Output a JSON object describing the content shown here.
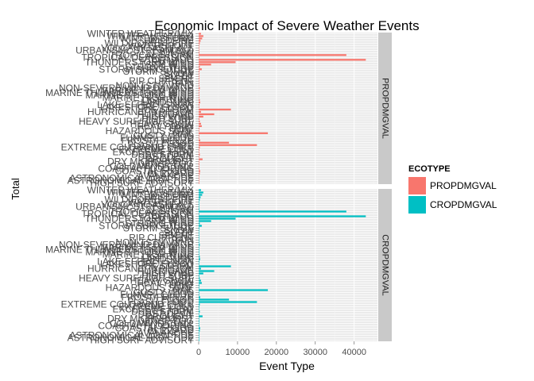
{
  "chart_data": {
    "type": "bar",
    "orientation": "horizontal",
    "title": "Economic Impact of Severe Weather Events",
    "xlabel": "Event Type",
    "ylabel": "Total",
    "xlim": [
      0,
      46000
    ],
    "x_ticks": [
      0,
      10000,
      20000,
      30000,
      40000
    ],
    "x_tick_labels": [
      "0",
      "10000",
      "20000",
      "30000",
      "40000"
    ],
    "grid": true,
    "legend_position": "right",
    "legend": {
      "title": "ECOTYPE",
      "items": [
        {
          "label": "PROPDMGVAL",
          "color": "#F8766D"
        },
        {
          "label": "CROPDMGVAL",
          "color": "#00BFC4"
        }
      ]
    },
    "facets": [
      {
        "label": "PROPDMGVAL",
        "color": "#F8766D"
      },
      {
        "label": "CROPDMGVAL",
        "color": "#00BFC4"
      }
    ],
    "categories": [
      "WINTER WEATHER/MIX",
      "WINTER WEATHER",
      "WINTER STORM",
      "WILDFIRE",
      "WILD/FOREST FIRE",
      "WATERSPOUT",
      "VOLCANIC ASHFALL",
      "URBAN/SML STREAM FLD",
      "TSUNAMI",
      "TROPICAL STORM",
      "TROPICAL DEPRESSION",
      "TORNADO",
      "THUNDERSTORM WIND",
      "TSTM WIND",
      "STRONG WIND",
      "STORM SURGE/TIDE",
      "STORM SURGE",
      "SNOW",
      "SLEET",
      "SEICHE",
      "RIP CURRENT",
      "RAIN",
      "NON-TSTM WIND",
      "NON-SEVERE WIND DAMAGE",
      "MARINE TSTM WIND",
      "MARINE THUNDERSTORM WIND",
      "MARINE STRONG WIND",
      "MARINE HIGH WIND",
      "LIGHTNING",
      "LANDSLIDE",
      "LAKE-EFFECT SNOW",
      "LAKESHORE FLOOD",
      "ICE STORM",
      "HURRICANE/TYPHOON",
      "HURRICANE",
      "HIGH WIND",
      "HIGH SURF",
      "HEAVY SURF/HIGH SURF",
      "HEAVY SNOW",
      "HEAVY RAIN",
      "HEAT",
      "HAZARDOUS SURF",
      "HAIL",
      "GUSTY WIND",
      "FUNNEL CLOUD",
      "FROST/FREEZE",
      "FLOOD",
      "FLASH FLOOD",
      "EXTREME COLD/WIND CHILL",
      "EXTREME COLD",
      "EXCESSIVE HEAT",
      "DUST STORM",
      "DUST DEVIL",
      "DROUGHT",
      "DRY MICROBURST",
      "DENSE FOG",
      "COLD/WIND CHILL",
      "COASTAL FLOODING",
      "COASTAL FLOOD",
      "BLIZZARD",
      "AVALANCHE",
      "ASTRONOMICAL LOW TIDE",
      "ASTRONOMICAL HIGH TIDE",
      "HIGH SURF ADVISORY"
    ],
    "series": [
      {
        "name": "PROPDMGVAL",
        "values": [
          600,
          1200,
          900,
          500,
          300,
          50,
          20,
          150,
          200,
          38000,
          100,
          43000,
          9500,
          3200,
          300,
          800,
          200,
          150,
          50,
          30,
          20,
          100,
          60,
          300,
          50,
          80,
          30,
          100,
          300,
          400,
          200,
          150,
          8300,
          600,
          4000,
          1200,
          200,
          300,
          600,
          800,
          200,
          80,
          17800,
          100,
          50,
          400,
          7800,
          15000,
          300,
          200,
          100,
          300,
          50,
          1000,
          100,
          200,
          80,
          200,
          400,
          300,
          80,
          20,
          30,
          10
        ]
      },
      {
        "name": "CROPDMGVAL",
        "values": [
          600,
          1200,
          900,
          500,
          300,
          50,
          20,
          150,
          200,
          38000,
          100,
          43000,
          9500,
          3200,
          300,
          800,
          200,
          150,
          50,
          30,
          20,
          100,
          60,
          300,
          50,
          80,
          30,
          100,
          300,
          400,
          200,
          150,
          8300,
          600,
          4000,
          1200,
          200,
          300,
          600,
          800,
          200,
          80,
          17800,
          100,
          50,
          400,
          7800,
          15000,
          300,
          200,
          100,
          300,
          50,
          1000,
          100,
          200,
          80,
          200,
          400,
          300,
          80,
          20,
          30,
          10
        ]
      }
    ]
  }
}
